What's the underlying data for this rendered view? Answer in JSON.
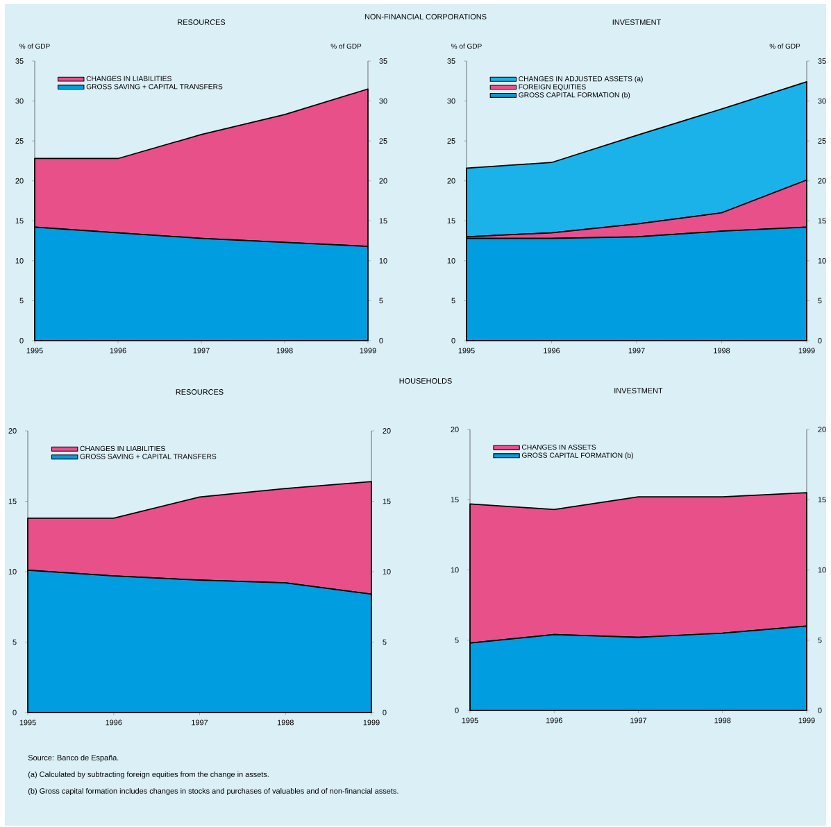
{
  "chart_data": [
    {
      "type": "area",
      "title": "RESOURCES",
      "ylabel": "% of GDP",
      "y2label": "% of GDP",
      "annotations": [
        "NON-FINANCIAL CORPORATIONS"
      ],
      "stacked": true,
      "legend": "top left",
      "categories": [
        "1995",
        "1996",
        "1997",
        "1998",
        "1999"
      ],
      "ylim": [
        0,
        35
      ],
      "yticks": [
        0,
        5,
        10,
        15,
        20,
        25,
        30,
        35
      ],
      "y2lim": [
        0,
        35
      ],
      "y2ticks": [
        0,
        5,
        10,
        15,
        20,
        25,
        30,
        35
      ],
      "series": [
        {
          "name": "GROSS SAVING + CAPITAL TRANSFERS",
          "color": "#009ee0",
          "values": [
            14.2,
            13.5,
            12.8,
            12.3,
            11.8
          ]
        },
        {
          "name": "CHANGES IN LIABILITIES",
          "color": "#e8508a",
          "values": [
            8.6,
            9.3,
            13.0,
            16.0,
            19.7
          ]
        }
      ]
    },
    {
      "type": "area",
      "title": "INVESTMENT",
      "ylabel": "% of GDP",
      "y2label": "% of GDP",
      "stacked": true,
      "legend": "top left",
      "categories": [
        "1995",
        "1996",
        "1997",
        "1998",
        "1999"
      ],
      "ylim": [
        0,
        35
      ],
      "yticks": [
        0,
        5,
        10,
        15,
        20,
        25,
        30,
        35
      ],
      "y2lim": [
        0,
        35
      ],
      "y2ticks": [
        0,
        5,
        10,
        15,
        20,
        25,
        30,
        35
      ],
      "series": [
        {
          "name": "GROSS CAPITAL FORMATION (b)",
          "color": "#009ee0",
          "values": [
            12.8,
            12.8,
            13.0,
            13.7,
            14.2
          ]
        },
        {
          "name": "FOREIGN EQUITIES",
          "color": "#e8508a",
          "values": [
            0.2,
            0.7,
            1.6,
            2.3,
            5.9
          ]
        },
        {
          "name": "CHANGES IN ADJUSTED ASSETS (a)",
          "color": "#1ab2e8",
          "values": [
            8.6,
            8.8,
            11.1,
            13.0,
            12.3
          ]
        }
      ]
    },
    {
      "type": "area",
      "title": "RESOURCES",
      "annotations": [
        "HOUSEHOLDS"
      ],
      "stacked": true,
      "legend": "top left",
      "categories": [
        "1995",
        "1996",
        "1997",
        "1998",
        "1999"
      ],
      "ylim": [
        0,
        20
      ],
      "yticks": [
        0,
        5,
        10,
        15,
        20
      ],
      "y2lim": [
        0,
        20
      ],
      "y2ticks": [
        0,
        5,
        10,
        15,
        20
      ],
      "series": [
        {
          "name": "GROSS SAVING + CAPITAL TRANSFERS",
          "color": "#009ee0",
          "values": [
            10.1,
            9.7,
            9.4,
            9.2,
            8.4
          ]
        },
        {
          "name": "CHANGES IN LIABILITIES",
          "color": "#e8508a",
          "values": [
            3.7,
            4.1,
            5.9,
            6.7,
            8.0
          ]
        }
      ]
    },
    {
      "type": "area",
      "title": "INVESTMENT",
      "annotations": [
        "Source: Banco de España.",
        "(a)   Calculated by subtracting foreign equities from the change in assets.",
        "(b)   Gross capital formation includes changes in stocks and purchases of valuables and of non-financial assets."
      ],
      "stacked": true,
      "legend": "top left",
      "categories": [
        "1995",
        "1996",
        "1997",
        "1998",
        "1999"
      ],
      "ylim": [
        0,
        20
      ],
      "yticks": [
        0,
        5,
        10,
        15,
        20
      ],
      "y2lim": [
        0,
        20
      ],
      "y2ticks": [
        0,
        5,
        10,
        15,
        20
      ],
      "series": [
        {
          "name": "GROSS CAPITAL FORMATION (b)",
          "color": "#009ee0",
          "values": [
            4.8,
            5.4,
            5.2,
            5.5,
            6.0
          ]
        },
        {
          "name": "CHANGES IN ASSETS",
          "color": "#e8508a",
          "values": [
            9.9,
            8.9,
            10.0,
            9.7,
            9.5
          ]
        }
      ]
    }
  ]
}
